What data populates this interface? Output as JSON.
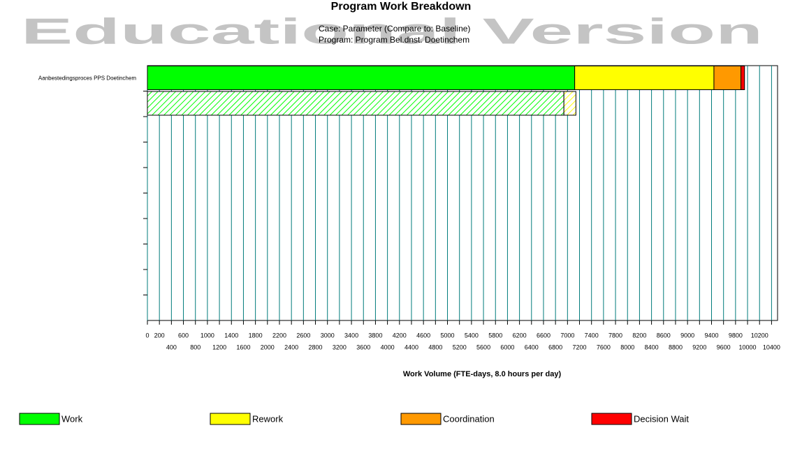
{
  "chart_data": {
    "type": "stacked-barh",
    "title": "Program Work Breakdown",
    "watermark": "Educational Version",
    "subtitle": [
      "Case: Parameter (Compare to: Baseline)",
      "Program: Program Bel.dnst. Doetinchem"
    ],
    "x_label": "Work Volume  (FTE-days, 8.0 hours per day)",
    "categories": [
      "Aanbestedingsproces PPS Doetinchem",
      null,
      null,
      null,
      null
    ],
    "series": [
      {
        "name": "Work",
        "color": "#00ff00",
        "values": [
          7120,
          null,
          null,
          null,
          null
        ],
        "baseline_values": [
          6940,
          null,
          null,
          null,
          null
        ]
      },
      {
        "name": "Rework",
        "color": "#ffff00",
        "values": [
          2320,
          null,
          null,
          null,
          null
        ],
        "baseline_values": [
          200,
          null,
          null,
          null,
          null
        ]
      },
      {
        "name": "Coordination",
        "color": "#ff9900",
        "values": [
          450,
          null,
          null,
          null,
          null
        ],
        "baseline_values": [
          0,
          null,
          null,
          null,
          null
        ]
      },
      {
        "name": "Decision Wait",
        "color": "#ff0000",
        "values": [
          60,
          null,
          null,
          null,
          null
        ],
        "baseline_values": [
          0,
          null,
          null,
          null,
          null
        ]
      }
    ],
    "xlim": [
      0,
      10500
    ],
    "xticks": [
      0,
      200,
      400,
      600,
      800,
      1000,
      1200,
      1400,
      1600,
      1800,
      2000,
      2200,
      2400,
      2600,
      2800,
      3000,
      3200,
      3400,
      3600,
      3800,
      4000,
      4200,
      4400,
      4600,
      4800,
      5000,
      5200,
      5400,
      5600,
      5800,
      6000,
      6200,
      6400,
      6600,
      6800,
      7000,
      7200,
      7400,
      7600,
      7800,
      8000,
      8200,
      8400,
      8600,
      8800,
      9000,
      9200,
      9400,
      9600,
      9800,
      10000,
      10200,
      10400
    ],
    "grid": true,
    "grid_color": "#007b7b"
  }
}
